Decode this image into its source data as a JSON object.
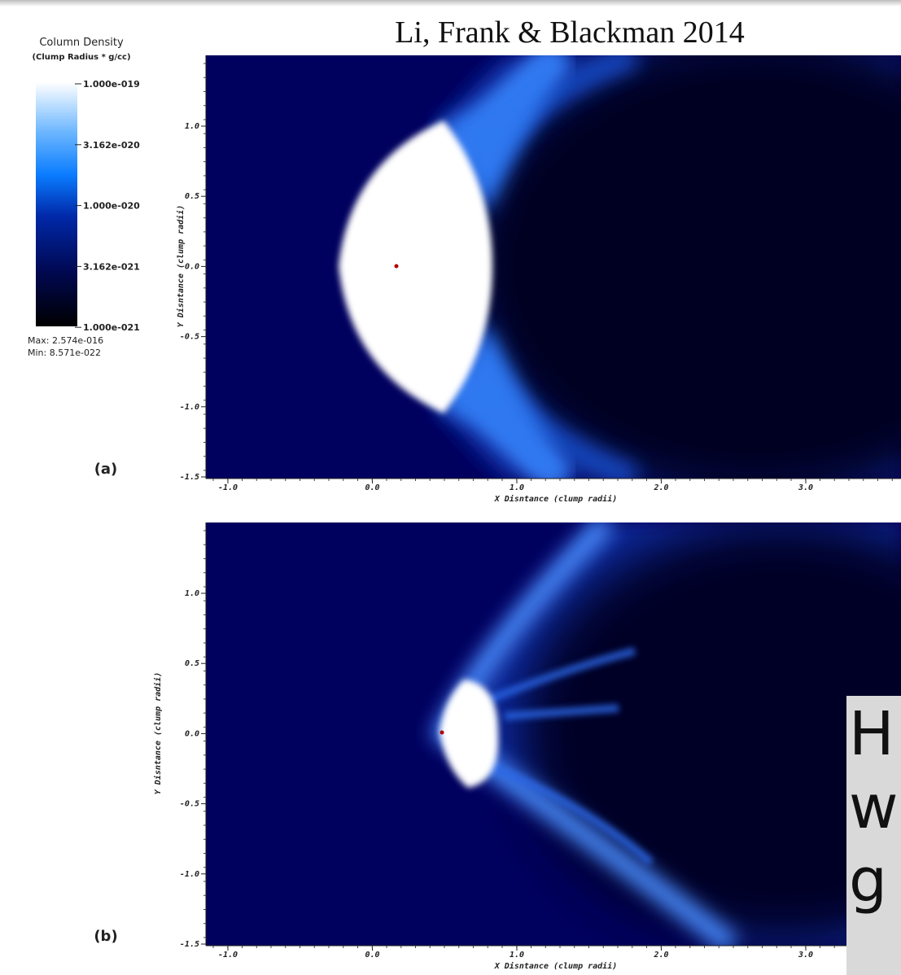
{
  "header": {
    "title": "Li, Frank & Blackman 2014"
  },
  "colorbar": {
    "title": "Column Density",
    "units": "(Clump Radius * g/cc)",
    "ticks": [
      "1.000e-019",
      "3.162e-020",
      "1.000e-020",
      "3.162e-021",
      "1.000e-021"
    ],
    "max": "Max: 2.574e-016",
    "min": "Min: 8.571e-022"
  },
  "panels": [
    {
      "label": "(a)",
      "x_label": "X Disntance (clump radii)",
      "y_label": "Y Disntance (clump radii)",
      "x_ticks": [
        "-1.0",
        "0.0",
        "1.0",
        "2.0",
        "3.0"
      ],
      "y_ticks": [
        "1.0",
        "0.5",
        "0.0",
        "-0.5",
        "-1.0",
        "-1.5"
      ]
    },
    {
      "label": "(b)",
      "x_label": "X Disntance (clump radii)",
      "y_label": "Y Disntance (clump radii)",
      "x_ticks": [
        "-1.0",
        "0.0",
        "1.0",
        "2.0",
        "3.0"
      ],
      "y_ticks": [
        "1.0",
        "0.5",
        "0.0",
        "-0.5",
        "-1.0",
        "-1.5"
      ]
    }
  ],
  "overlay": {
    "lines": [
      "H",
      "w",
      "g"
    ]
  }
}
